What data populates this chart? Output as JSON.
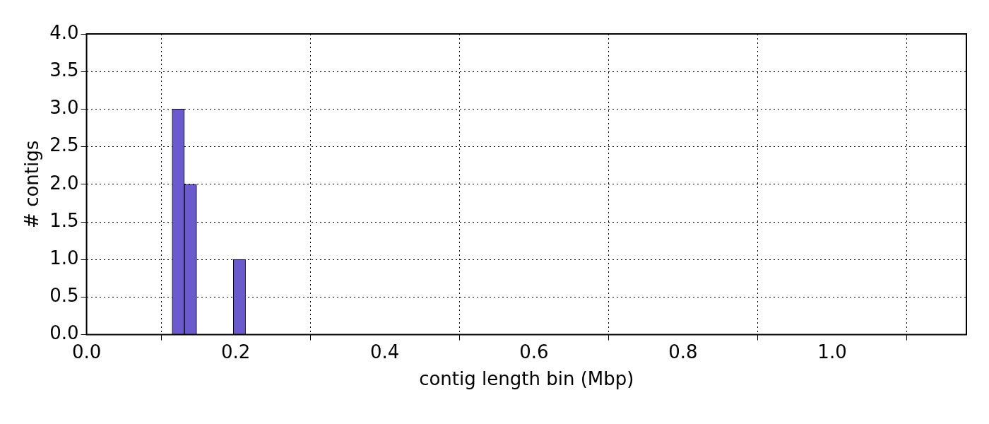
{
  "chart_data": {
    "type": "histogram",
    "xlabel": "contig length bin (Mbp)",
    "ylabel": "# contigs",
    "bins": [
      0,
      0.0164,
      0.0328,
      0.0492,
      0.0656,
      0.082,
      0.0984,
      0.1148,
      0.1312,
      0.1476,
      0.164,
      0.1804,
      0.1968,
      0.2132
    ],
    "values": [
      0,
      0,
      0,
      0,
      0,
      0,
      0,
      3,
      2,
      0,
      0,
      0,
      1
    ],
    "color": "#6a5acd",
    "xlim": [
      0,
      1.18
    ],
    "xticks": [
      {
        "value": 0,
        "label": "0.0"
      },
      0.2,
      0.4,
      0.6,
      0.8,
      {
        "value": 1,
        "label": "1.0"
      }
    ],
    "ylim": [
      0,
      4
    ],
    "yticks": [
      {
        "value": 0,
        "label": "0.0"
      },
      0.5,
      {
        "value": 1,
        "label": "1.0"
      },
      1.5,
      {
        "value": 2,
        "label": "2.0"
      },
      2.5,
      {
        "value": 3,
        "label": "3.0"
      },
      3.5,
      {
        "value": 4,
        "label": "4.0"
      }
    ],
    "grid": true
  }
}
